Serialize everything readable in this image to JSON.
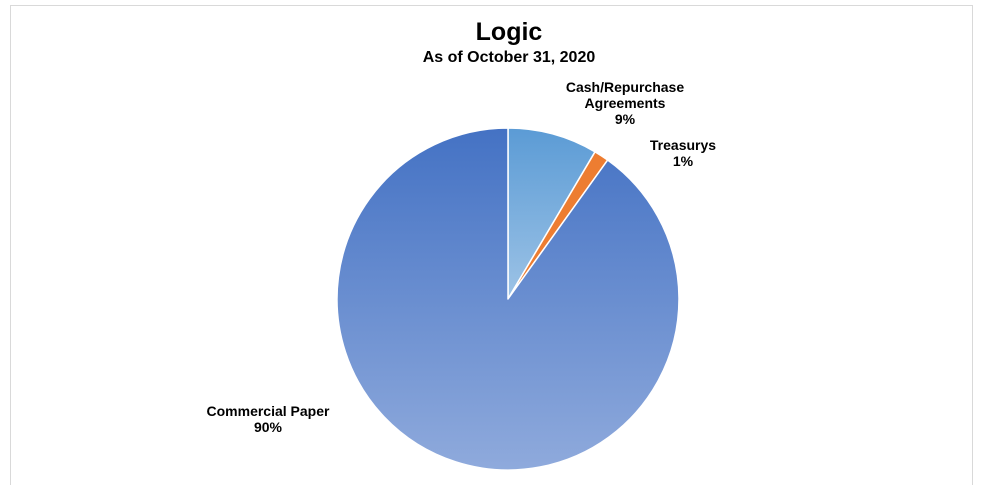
{
  "chart_data": {
    "type": "pie",
    "title": "Logic",
    "subtitle": "As of October 31, 2020",
    "start_angle_deg": 0,
    "direction": "clockwise",
    "slices": [
      {
        "label_lines": [
          "Cash/Repurchase",
          "Agreements"
        ],
        "percent_label": "9%",
        "value": 8.5,
        "gradient_from": "#5b9bd5",
        "gradient_to": "#9dc3e6"
      },
      {
        "label_lines": [
          "Treasurys"
        ],
        "percent_label": "1%",
        "value": 1.4,
        "gradient_from": "#ed7d31",
        "gradient_to": "#ed7d31"
      },
      {
        "label_lines": [
          "Commercial Paper"
        ],
        "percent_label": "90%",
        "value": 90.1,
        "gradient_from": "#4472c4",
        "gradient_to": "#8faadc"
      }
    ]
  }
}
